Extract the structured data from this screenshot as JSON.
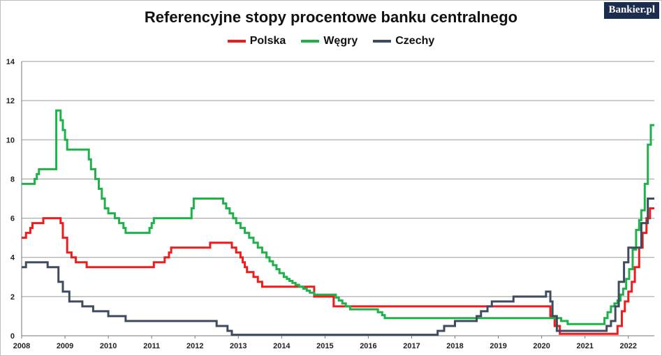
{
  "brand": "Bankier.pl",
  "chart_data": {
    "type": "line",
    "title": "Referencyjne stopy procentowe banku centralnego",
    "xlabel": "",
    "ylabel": "",
    "xlim": [
      2008,
      2022.6
    ],
    "ylim": [
      0,
      14
    ],
    "y_ticks": [
      0,
      2,
      4,
      6,
      8,
      10,
      12,
      14
    ],
    "x_ticks": [
      2008,
      2009,
      2010,
      2011,
      2012,
      2013,
      2014,
      2015,
      2016,
      2017,
      2018,
      2019,
      2020,
      2021,
      2022
    ],
    "grid": true,
    "legend_position": "top",
    "series": [
      {
        "name": "Polska",
        "color": "#ee1c1c",
        "points": [
          [
            2008.0,
            5.0
          ],
          [
            2008.1,
            5.25
          ],
          [
            2008.2,
            5.5
          ],
          [
            2008.25,
            5.75
          ],
          [
            2008.5,
            6.0
          ],
          [
            2008.9,
            5.75
          ],
          [
            2008.95,
            5.0
          ],
          [
            2009.05,
            4.25
          ],
          [
            2009.15,
            4.0
          ],
          [
            2009.25,
            3.75
          ],
          [
            2009.5,
            3.5
          ],
          [
            2011.05,
            3.75
          ],
          [
            2011.3,
            4.0
          ],
          [
            2011.4,
            4.25
          ],
          [
            2011.45,
            4.5
          ],
          [
            2012.35,
            4.75
          ],
          [
            2012.85,
            4.5
          ],
          [
            2012.95,
            4.25
          ],
          [
            2013.05,
            4.0
          ],
          [
            2013.1,
            3.75
          ],
          [
            2013.15,
            3.5
          ],
          [
            2013.2,
            3.25
          ],
          [
            2013.35,
            3.0
          ],
          [
            2013.45,
            2.75
          ],
          [
            2013.55,
            2.5
          ],
          [
            2014.75,
            2.0
          ],
          [
            2015.2,
            1.5
          ],
          [
            2020.2,
            1.0
          ],
          [
            2020.3,
            0.5
          ],
          [
            2020.42,
            0.1
          ],
          [
            2021.75,
            0.5
          ],
          [
            2021.85,
            1.25
          ],
          [
            2021.92,
            1.75
          ],
          [
            2022.0,
            2.25
          ],
          [
            2022.08,
            2.75
          ],
          [
            2022.15,
            3.5
          ],
          [
            2022.25,
            4.5
          ],
          [
            2022.33,
            5.25
          ],
          [
            2022.42,
            6.0
          ],
          [
            2022.5,
            6.5
          ],
          [
            2022.6,
            6.5
          ]
        ]
      },
      {
        "name": "Węgry",
        "color": "#1fb14a",
        "points": [
          [
            2008.0,
            7.75
          ],
          [
            2008.3,
            8.0
          ],
          [
            2008.35,
            8.25
          ],
          [
            2008.4,
            8.5
          ],
          [
            2008.8,
            11.5
          ],
          [
            2008.9,
            11.0
          ],
          [
            2008.95,
            10.5
          ],
          [
            2009.0,
            10.0
          ],
          [
            2009.05,
            9.5
          ],
          [
            2009.55,
            9.0
          ],
          [
            2009.6,
            8.5
          ],
          [
            2009.7,
            8.0
          ],
          [
            2009.78,
            7.5
          ],
          [
            2009.85,
            7.0
          ],
          [
            2009.92,
            6.5
          ],
          [
            2010.0,
            6.25
          ],
          [
            2010.15,
            6.0
          ],
          [
            2010.25,
            5.75
          ],
          [
            2010.35,
            5.5
          ],
          [
            2010.4,
            5.25
          ],
          [
            2010.95,
            5.5
          ],
          [
            2011.0,
            5.75
          ],
          [
            2011.05,
            6.0
          ],
          [
            2011.92,
            6.5
          ],
          [
            2011.97,
            7.0
          ],
          [
            2012.65,
            6.75
          ],
          [
            2012.72,
            6.5
          ],
          [
            2012.8,
            6.25
          ],
          [
            2012.88,
            6.0
          ],
          [
            2012.95,
            5.75
          ],
          [
            2013.05,
            5.5
          ],
          [
            2013.15,
            5.25
          ],
          [
            2013.25,
            5.0
          ],
          [
            2013.35,
            4.75
          ],
          [
            2013.45,
            4.5
          ],
          [
            2013.55,
            4.25
          ],
          [
            2013.65,
            4.0
          ],
          [
            2013.72,
            3.8
          ],
          [
            2013.8,
            3.6
          ],
          [
            2013.88,
            3.4
          ],
          [
            2013.95,
            3.2
          ],
          [
            2014.05,
            3.0
          ],
          [
            2014.12,
            2.9
          ],
          [
            2014.18,
            2.8
          ],
          [
            2014.25,
            2.7
          ],
          [
            2014.32,
            2.6
          ],
          [
            2014.4,
            2.5
          ],
          [
            2014.5,
            2.4
          ],
          [
            2014.58,
            2.3
          ],
          [
            2014.65,
            2.2
          ],
          [
            2014.75,
            2.1
          ],
          [
            2015.25,
            1.95
          ],
          [
            2015.32,
            1.8
          ],
          [
            2015.4,
            1.65
          ],
          [
            2015.48,
            1.5
          ],
          [
            2015.58,
            1.35
          ],
          [
            2016.22,
            1.2
          ],
          [
            2016.32,
            1.05
          ],
          [
            2016.38,
            0.9
          ],
          [
            2020.45,
            0.75
          ],
          [
            2020.6,
            0.6
          ],
          [
            2021.45,
            0.9
          ],
          [
            2021.52,
            1.2
          ],
          [
            2021.6,
            1.5
          ],
          [
            2021.68,
            1.65
          ],
          [
            2021.75,
            1.8
          ],
          [
            2021.82,
            2.1
          ],
          [
            2021.88,
            2.4
          ],
          [
            2021.95,
            2.9
          ],
          [
            2022.02,
            3.4
          ],
          [
            2022.1,
            4.4
          ],
          [
            2022.18,
            5.4
          ],
          [
            2022.25,
            5.9
          ],
          [
            2022.3,
            6.4
          ],
          [
            2022.38,
            7.75
          ],
          [
            2022.45,
            9.75
          ],
          [
            2022.52,
            10.75
          ],
          [
            2022.6,
            10.75
          ]
        ]
      },
      {
        "name": "Czechy",
        "color": "#3f4b5e",
        "points": [
          [
            2008.0,
            3.5
          ],
          [
            2008.1,
            3.75
          ],
          [
            2008.6,
            3.5
          ],
          [
            2008.85,
            2.75
          ],
          [
            2008.95,
            2.25
          ],
          [
            2009.1,
            1.75
          ],
          [
            2009.4,
            1.5
          ],
          [
            2009.65,
            1.25
          ],
          [
            2010.0,
            1.0
          ],
          [
            2010.4,
            0.75
          ],
          [
            2012.5,
            0.5
          ],
          [
            2012.75,
            0.25
          ],
          [
            2012.85,
            0.05
          ],
          [
            2017.6,
            0.25
          ],
          [
            2017.75,
            0.5
          ],
          [
            2018.0,
            0.75
          ],
          [
            2018.5,
            1.0
          ],
          [
            2018.6,
            1.25
          ],
          [
            2018.75,
            1.5
          ],
          [
            2018.85,
            1.75
          ],
          [
            2019.35,
            2.0
          ],
          [
            2020.1,
            2.25
          ],
          [
            2020.2,
            1.75
          ],
          [
            2020.25,
            1.0
          ],
          [
            2020.35,
            0.25
          ],
          [
            2021.5,
            0.5
          ],
          [
            2021.6,
            0.75
          ],
          [
            2021.7,
            1.5
          ],
          [
            2021.78,
            2.75
          ],
          [
            2021.9,
            3.75
          ],
          [
            2022.0,
            4.5
          ],
          [
            2022.3,
            5.75
          ],
          [
            2022.45,
            7.0
          ],
          [
            2022.6,
            7.0
          ]
        ]
      }
    ]
  }
}
